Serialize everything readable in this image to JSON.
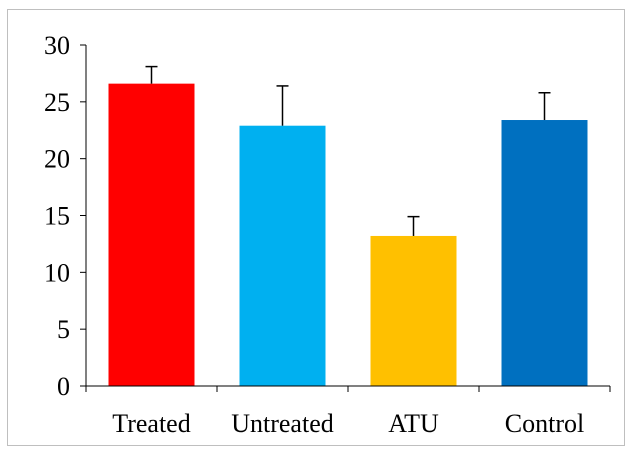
{
  "chart_data": {
    "type": "bar",
    "title": "",
    "xlabel": "",
    "ylabel": "",
    "ylim": [
      0,
      30
    ],
    "yticks": [
      0,
      5,
      10,
      15,
      20,
      25,
      30
    ],
    "categories": [
      "Treated",
      "Untreated",
      "ATU",
      "Control"
    ],
    "values": [
      26.6,
      22.9,
      13.2,
      23.4
    ],
    "errors": [
      1.5,
      3.5,
      1.7,
      2.4
    ],
    "colors": [
      "#ff0000",
      "#00b0f0",
      "#ffc000",
      "#0070c0"
    ],
    "grid": false,
    "legend": "none"
  }
}
